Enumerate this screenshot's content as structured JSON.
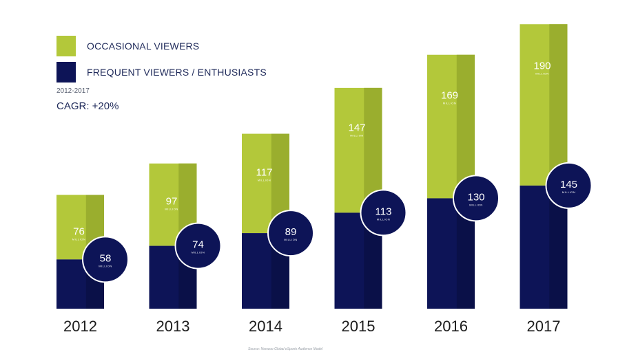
{
  "legend": {
    "occasional": "OCCASIONAL VIEWERS",
    "frequent": "FREQUENT VIEWERS / ENTHUSIASTS"
  },
  "period": "2012-2017",
  "cagr": "CAGR: +20%",
  "unit": "MILLION",
  "source": "Source: Newzoo Global eSports Audience Model",
  "colors": {
    "occasional": "#b3c83a",
    "occasional_shade": "#9aae2e",
    "frequent": "#0d1457",
    "frequent_shade": "#0a1048",
    "bubble_ring": "#ffffff"
  },
  "chart_data": {
    "type": "bar",
    "stacked": true,
    "title": "",
    "xlabel": "",
    "ylabel": "",
    "ylim": [
      0,
      336
    ],
    "categories": [
      "2012",
      "2013",
      "2014",
      "2015",
      "2016",
      "2017"
    ],
    "series": [
      {
        "name": "FREQUENT VIEWERS / ENTHUSIASTS",
        "values": [
          58,
          74,
          89,
          113,
          130,
          145
        ]
      },
      {
        "name": "OCCASIONAL VIEWERS",
        "values": [
          76,
          97,
          117,
          147,
          169,
          190
        ]
      }
    ]
  }
}
